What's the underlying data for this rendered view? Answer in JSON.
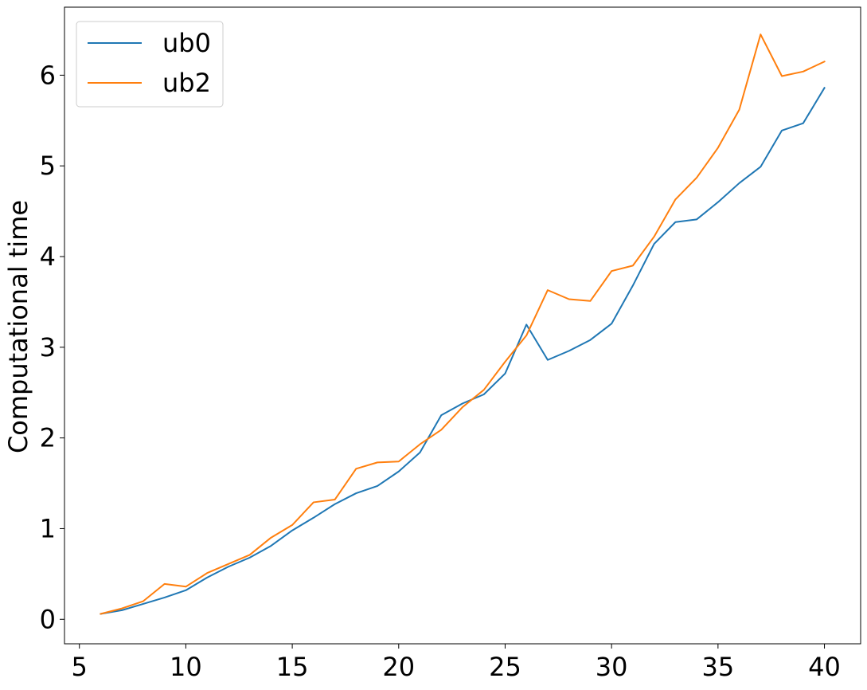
{
  "chart_data": {
    "type": "line",
    "title": "",
    "xlabel": "",
    "ylabel": "Computational time",
    "xlim": [
      4.3,
      41.7
    ],
    "ylim": [
      -0.27,
      6.75
    ],
    "xticks": [
      5,
      10,
      15,
      20,
      25,
      30,
      35,
      40
    ],
    "yticks": [
      0,
      1,
      2,
      3,
      4,
      5,
      6
    ],
    "grid": false,
    "legend_position": "top-left",
    "x": [
      6,
      7,
      8,
      9,
      10,
      11,
      12,
      13,
      14,
      15,
      16,
      17,
      18,
      19,
      20,
      21,
      22,
      23,
      24,
      25,
      26,
      27,
      28,
      29,
      30,
      31,
      32,
      33,
      34,
      35,
      36,
      37,
      38,
      39,
      40
    ],
    "series": [
      {
        "name": "ub0",
        "color": "#1f77b4",
        "values": [
          0.06,
          0.1,
          0.17,
          0.24,
          0.32,
          0.46,
          0.58,
          0.68,
          0.81,
          0.98,
          1.12,
          1.27,
          1.39,
          1.47,
          1.63,
          1.84,
          2.25,
          2.38,
          2.48,
          2.71,
          3.25,
          2.86,
          2.96,
          3.08,
          3.26,
          3.68,
          4.14,
          4.38,
          4.41,
          4.6,
          4.81,
          4.99,
          5.39,
          5.47,
          5.86
        ]
      },
      {
        "name": "ub2",
        "color": "#ff7f0e",
        "values": [
          0.06,
          0.12,
          0.2,
          0.39,
          0.36,
          0.51,
          0.61,
          0.71,
          0.9,
          1.04,
          1.29,
          1.32,
          1.66,
          1.73,
          1.74,
          1.93,
          2.09,
          2.34,
          2.53,
          2.84,
          3.13,
          3.63,
          3.53,
          3.51,
          3.84,
          3.9,
          4.22,
          4.63,
          4.87,
          5.2,
          5.62,
          6.45,
          5.99,
          6.04,
          6.15
        ]
      }
    ]
  }
}
